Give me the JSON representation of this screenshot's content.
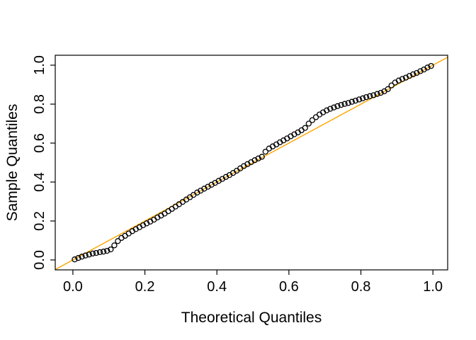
{
  "figure": {
    "background": "#ffffff",
    "frame_color": "#000000"
  },
  "chart_data": {
    "type": "scatter",
    "title": "",
    "xlabel": "Theoretical Quantiles",
    "ylabel": "Sample Quantiles",
    "xlim": [
      -0.049,
      1.041
    ],
    "ylim": [
      -0.051,
      1.051
    ],
    "grid": false,
    "legend": null,
    "x_ticks": {
      "values": [
        0.0,
        0.2,
        0.4,
        0.6,
        0.8,
        1.0
      ],
      "labels": [
        "0.0",
        "0.2",
        "0.4",
        "0.6",
        "0.8",
        "1.0"
      ]
    },
    "y_ticks": {
      "values": [
        0.0,
        0.2,
        0.4,
        0.6,
        0.8,
        1.0
      ],
      "labels": [
        "0.0",
        "0.2",
        "0.4",
        "0.6",
        "0.8",
        "1.0"
      ]
    },
    "reference_line": {
      "type": "abline",
      "intercept": 0,
      "slope": 1,
      "color": "#FFA500"
    },
    "point_style": {
      "marker": "open-circle",
      "stroke": "#000000",
      "fill": "none",
      "radius": 3.5
    },
    "points": {
      "x": [
        0.005,
        0.015,
        0.025,
        0.035,
        0.045,
        0.055,
        0.065,
        0.075,
        0.085,
        0.095,
        0.105,
        0.115,
        0.125,
        0.135,
        0.145,
        0.155,
        0.165,
        0.175,
        0.185,
        0.195,
        0.205,
        0.215,
        0.225,
        0.235,
        0.245,
        0.255,
        0.265,
        0.275,
        0.285,
        0.295,
        0.305,
        0.315,
        0.325,
        0.335,
        0.345,
        0.355,
        0.365,
        0.375,
        0.385,
        0.395,
        0.405,
        0.415,
        0.425,
        0.435,
        0.445,
        0.455,
        0.465,
        0.475,
        0.485,
        0.495,
        0.505,
        0.515,
        0.525,
        0.535,
        0.545,
        0.555,
        0.565,
        0.575,
        0.585,
        0.595,
        0.605,
        0.615,
        0.625,
        0.635,
        0.645,
        0.655,
        0.665,
        0.675,
        0.685,
        0.695,
        0.705,
        0.715,
        0.725,
        0.735,
        0.745,
        0.755,
        0.765,
        0.775,
        0.785,
        0.795,
        0.805,
        0.815,
        0.825,
        0.835,
        0.845,
        0.855,
        0.865,
        0.875,
        0.885,
        0.895,
        0.905,
        0.915,
        0.925,
        0.935,
        0.945,
        0.955,
        0.965,
        0.975,
        0.985,
        0.995
      ],
      "y": [
        0.003,
        0.01,
        0.017,
        0.023,
        0.028,
        0.033,
        0.036,
        0.04,
        0.043,
        0.047,
        0.054,
        0.075,
        0.097,
        0.113,
        0.124,
        0.136,
        0.148,
        0.158,
        0.168,
        0.178,
        0.188,
        0.197,
        0.207,
        0.218,
        0.228,
        0.238,
        0.25,
        0.262,
        0.274,
        0.286,
        0.298,
        0.31,
        0.322,
        0.334,
        0.346,
        0.356,
        0.366,
        0.376,
        0.386,
        0.396,
        0.406,
        0.416,
        0.426,
        0.436,
        0.447,
        0.458,
        0.47,
        0.482,
        0.492,
        0.502,
        0.512,
        0.521,
        0.53,
        0.556,
        0.572,
        0.583,
        0.593,
        0.604,
        0.614,
        0.624,
        0.635,
        0.645,
        0.655,
        0.666,
        0.678,
        0.7,
        0.718,
        0.733,
        0.747,
        0.758,
        0.768,
        0.776,
        0.783,
        0.79,
        0.796,
        0.801,
        0.806,
        0.812,
        0.818,
        0.824,
        0.83,
        0.836,
        0.841,
        0.846,
        0.852,
        0.858,
        0.866,
        0.877,
        0.896,
        0.911,
        0.921,
        0.929,
        0.936,
        0.945,
        0.953,
        0.96,
        0.969,
        0.978,
        0.988,
        0.996
      ]
    }
  }
}
